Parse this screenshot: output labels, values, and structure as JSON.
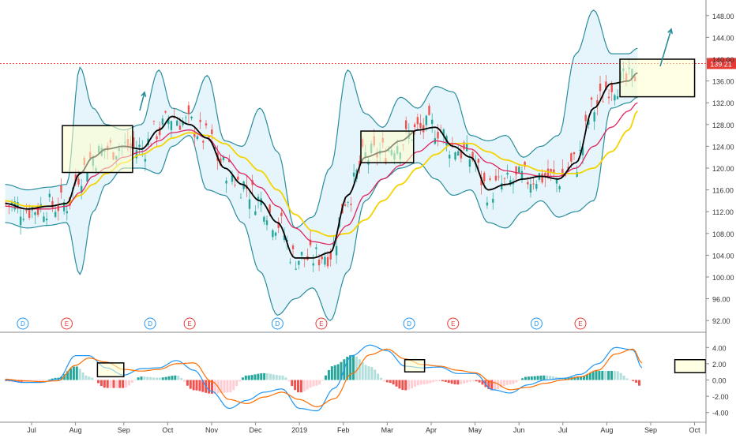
{
  "chart_data": [
    {
      "type": "line",
      "panel": "price",
      "y_ticks": [
        "148.00",
        "144.00",
        "140.00",
        "136.00",
        "132.00",
        "128.00",
        "124.00",
        "120.00",
        "116.00",
        "112.00",
        "108.00",
        "104.00",
        "100.00",
        "96.00",
        "92.00"
      ],
      "ylim": [
        90,
        150
      ],
      "price_label": "139.21",
      "price_level": 139.21,
      "markers": [
        {
          "label": "D",
          "x": 0.4,
          "kind": "dividend"
        },
        {
          "label": "E",
          "x": 1.4,
          "kind": "earnings"
        },
        {
          "label": "D",
          "x": 3.3,
          "kind": "dividend"
        },
        {
          "label": "E",
          "x": 4.2,
          "kind": "earnings"
        },
        {
          "label": "D",
          "x": 6.2,
          "kind": "dividend"
        },
        {
          "label": "E",
          "x": 7.2,
          "kind": "earnings"
        },
        {
          "label": "D",
          "x": 9.2,
          "kind": "dividend"
        },
        {
          "label": "E",
          "x": 10.2,
          "kind": "earnings"
        },
        {
          "label": "D",
          "x": 12.1,
          "kind": "dividend"
        },
        {
          "label": "E",
          "x": 13.1,
          "kind": "earnings"
        }
      ],
      "series": [
        {
          "name": "",
          "color": "#000000",
          "x": [
            0,
            0.5,
            1,
            1.4,
            1.7,
            2,
            2.3,
            2.7,
            3.1,
            3.5,
            3.8,
            4.2,
            4.6,
            5,
            5.4,
            5.8,
            6.2,
            6.6,
            7,
            7.4,
            7.8,
            8.2,
            8.6,
            9,
            9.4,
            9.8,
            10.2,
            10.6,
            11,
            11.4,
            11.8,
            12.2,
            12.6,
            13,
            13.4,
            13.8,
            14.2,
            14.4
          ],
          "y": [
            113.5,
            112.5,
            113,
            113.5,
            119,
            122,
            123.5,
            124,
            123.5,
            127,
            129.5,
            128,
            125.5,
            120,
            117,
            114,
            110,
            103.5,
            103.5,
            104.5,
            115,
            122,
            123,
            125,
            127,
            127.5,
            124,
            122,
            116,
            117,
            118,
            118.5,
            118,
            121,
            131,
            135.5,
            136,
            137.5
          ]
        },
        {
          "name": "",
          "color": "#e0245e",
          "x": [
            0,
            0.5,
            1,
            1.4,
            1.7,
            2,
            2.3,
            2.7,
            3.1,
            3.5,
            3.8,
            4.2,
            4.6,
            5,
            5.4,
            5.8,
            6.2,
            6.6,
            7,
            7.4,
            7.8,
            8.2,
            8.6,
            9,
            9.4,
            9.8,
            10.2,
            10.6,
            11,
            11.4,
            11.8,
            12.2,
            12.6,
            13,
            13.4,
            13.8,
            14.2,
            14.4
          ],
          "y": [
            113,
            112.5,
            112.5,
            113,
            115.5,
            118.5,
            120,
            122,
            123,
            125,
            126.5,
            127,
            125.5,
            122,
            119,
            116.5,
            113,
            109,
            106.5,
            106,
            109.5,
            115,
            118,
            120.5,
            123,
            125,
            124.5,
            123.5,
            121,
            119.5,
            119,
            118.5,
            118.5,
            120,
            124,
            127.5,
            130.5,
            132
          ]
        },
        {
          "name": "",
          "color": "#f5d300",
          "x": [
            0,
            0.5,
            1,
            1.4,
            1.7,
            2,
            2.3,
            2.7,
            3.1,
            3.5,
            3.8,
            4.2,
            4.6,
            5,
            5.4,
            5.8,
            6.2,
            6.6,
            7,
            7.4,
            7.8,
            8.2,
            8.6,
            9,
            9.4,
            9.8,
            10.2,
            10.6,
            11,
            11.4,
            11.8,
            12.2,
            12.6,
            13,
            13.4,
            13.8,
            14.2,
            14.4
          ],
          "y": [
            114,
            113,
            113,
            113.5,
            115,
            117,
            119,
            121,
            122.5,
            124,
            125.5,
            126.5,
            126,
            124.5,
            122,
            119.5,
            116,
            111.5,
            108.5,
            107.5,
            108,
            110.5,
            114,
            117,
            120,
            122.5,
            124.5,
            124.5,
            123,
            121.5,
            120.5,
            119.5,
            119,
            119,
            120,
            123,
            127,
            130.5
          ]
        },
        {
          "name": "",
          "color": "#2a8d9c",
          "x": [
            0,
            0.5,
            1,
            1.4,
            1.7,
            2,
            2.3,
            2.7,
            3.1,
            3.5,
            3.8,
            4.2,
            4.6,
            5,
            5.4,
            5.8,
            6.2,
            6.6,
            7,
            7.4,
            7.8,
            8.2,
            8.6,
            9,
            9.4,
            9.8,
            10.2,
            10.6,
            11,
            11.4,
            11.8,
            12.2,
            12.6,
            13,
            13.4,
            13.8,
            14.2,
            14.4
          ],
          "y": [
            117,
            116,
            116.5,
            117,
            138.5,
            131,
            128,
            127,
            128,
            138,
            131,
            130,
            137,
            125,
            124,
            131,
            123,
            109,
            111,
            120,
            138,
            130,
            127.5,
            133,
            131,
            135,
            134,
            126,
            125,
            126,
            122,
            124,
            126,
            141,
            149,
            141,
            141,
            142
          ]
        },
        {
          "name": "",
          "color": "#2a8d9c",
          "x": [
            0,
            0.5,
            1,
            1.4,
            1.7,
            2,
            2.3,
            2.7,
            3.1,
            3.5,
            3.8,
            4.2,
            4.6,
            5,
            5.4,
            5.8,
            6.2,
            6.6,
            7,
            7.4,
            7.8,
            8.2,
            8.6,
            9,
            9.4,
            9.8,
            10.2,
            10.6,
            11,
            11.4,
            11.8,
            12.2,
            12.6,
            13,
            13.4,
            13.8,
            14.2,
            14.4
          ],
          "y": [
            110,
            109,
            109.5,
            110,
            100.5,
            112,
            117,
            120,
            120,
            119,
            124,
            126,
            116,
            115,
            110,
            101,
            93,
            96,
            98,
            92,
            101,
            114,
            118,
            120,
            121,
            118,
            115,
            116,
            110,
            109,
            112,
            114,
            111,
            112,
            114,
            131,
            132,
            133
          ]
        }
      ]
    },
    {
      "type": "line",
      "panel": "macd",
      "y_ticks": [
        "4.00",
        "2.00",
        "0.00",
        "-2.00",
        "-4.00"
      ],
      "ylim": [
        -5,
        5
      ],
      "x_ticks": [
        "Jul",
        "Aug",
        "Sep",
        "Oct",
        "Nov",
        "Dec",
        "2019",
        "Feb",
        "Mar",
        "Apr",
        "May",
        "Jun",
        "Jul",
        "Aug",
        "Sep",
        "Oct"
      ],
      "x_tick_positions": [
        0.6,
        1.6,
        2.7,
        3.7,
        4.7,
        5.7,
        6.7,
        7.7,
        8.7,
        9.7,
        10.7,
        11.7,
        12.7,
        13.7,
        14.7,
        15.7
      ],
      "series": [
        {
          "name": "",
          "color": "#2196f3",
          "x": [
            0,
            0.4,
            0.8,
            1.2,
            1.6,
            1.9,
            2.3,
            2.7,
            3.1,
            3.5,
            3.9,
            4.3,
            4.7,
            5.1,
            5.5,
            5.9,
            6.3,
            6.7,
            7.1,
            7.5,
            7.9,
            8.3,
            8.7,
            9.1,
            9.5,
            9.9,
            10.3,
            10.7,
            11.1,
            11.5,
            11.9,
            12.3,
            12.7,
            13.1,
            13.5,
            13.9,
            14.3,
            14.5
          ],
          "y": [
            0,
            -0.3,
            -0.3,
            0.1,
            3,
            3,
            1.5,
            0.6,
            1.4,
            1.5,
            2.4,
            1.2,
            -1.4,
            -3.5,
            -2.5,
            -1.5,
            -1.1,
            -3.5,
            -3.8,
            -1,
            3,
            4.3,
            3.6,
            1.7,
            1.5,
            1.6,
            0.8,
            0.8,
            -1.2,
            -1.6,
            -0.6,
            0,
            0.2,
            0.7,
            2,
            4,
            3.7,
            1.5
          ]
        },
        {
          "name": "",
          "color": "#ff6d00",
          "x": [
            0,
            0.4,
            0.8,
            1.2,
            1.6,
            1.9,
            2.3,
            2.7,
            3.1,
            3.5,
            3.9,
            4.3,
            4.7,
            5.1,
            5.5,
            5.9,
            6.3,
            6.7,
            7.1,
            7.5,
            7.9,
            8.3,
            8.7,
            9.1,
            9.5,
            9.9,
            10.3,
            10.7,
            11.1,
            11.5,
            11.9,
            12.3,
            12.7,
            13.1,
            13.5,
            13.9,
            14.3,
            14.5
          ],
          "y": [
            0.1,
            -0.1,
            -0.2,
            -0.1,
            1.8,
            2.7,
            2.2,
            1.3,
            1.1,
            1.3,
            2,
            2.1,
            -0.2,
            -2.4,
            -2.9,
            -2.1,
            -1.5,
            -2.4,
            -3.3,
            -2.3,
            0.8,
            3.1,
            3.8,
            2.6,
            1.9,
            1.7,
            1.2,
            0.9,
            -0.3,
            -1.2,
            -0.9,
            -0.4,
            0,
            0.4,
            1.2,
            3.2,
            3.8,
            2.1
          ]
        }
      ]
    }
  ]
}
